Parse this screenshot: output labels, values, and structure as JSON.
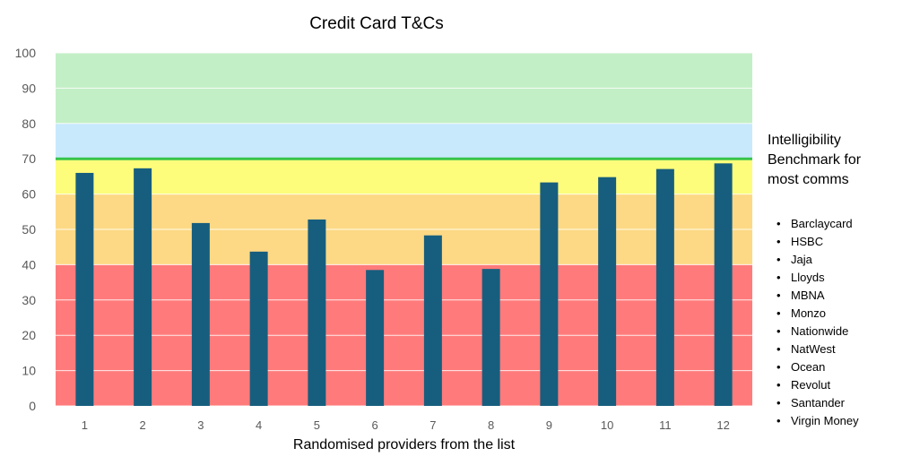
{
  "chart_data": {
    "type": "bar",
    "title": "Credit Card T&Cs",
    "xlabel": "Randomised providers from the list",
    "ylabel": "",
    "ylim": [
      0,
      100
    ],
    "yticks": [
      0,
      10,
      20,
      30,
      40,
      50,
      60,
      70,
      80,
      90,
      100
    ],
    "categories": [
      "1",
      "2",
      "3",
      "4",
      "5",
      "6",
      "7",
      "8",
      "9",
      "10",
      "11",
      "12"
    ],
    "values": [
      66,
      67.3,
      51.8,
      43.7,
      52.8,
      38.5,
      48.3,
      38.8,
      63.3,
      64.8,
      67.1,
      68.7
    ],
    "bar_color": "#175e7e",
    "grid": true,
    "bands": [
      {
        "from": 0,
        "to": 40,
        "color": "#ff7b7b"
      },
      {
        "from": 40,
        "to": 60,
        "color": "#fdd985"
      },
      {
        "from": 60,
        "to": 70,
        "color": "#fdfc7b"
      },
      {
        "from": 70,
        "to": 80,
        "color": "#c8e9fc"
      },
      {
        "from": 80,
        "to": 100,
        "color": "#c3efc6"
      }
    ],
    "benchmark": {
      "value": 70,
      "color": "#36c44a",
      "label": "Intelligibility Benchmark for most comms"
    }
  },
  "providers": [
    "Barclaycard",
    "HSBC",
    "Jaja",
    "Lloyds",
    "MBNA",
    "Monzo",
    "Nationwide",
    "NatWest",
    "Ocean",
    "Revolut",
    "Santander",
    "Virgin Money"
  ]
}
